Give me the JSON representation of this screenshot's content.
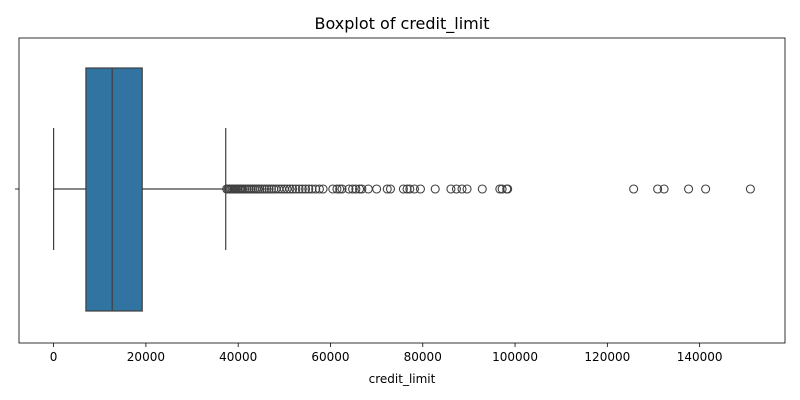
{
  "chart_data": {
    "type": "boxplot",
    "title": "Boxplot of credit_limit",
    "xlabel": "credit_limit",
    "ylabel": "",
    "xlim": [
      -7500,
      158500
    ],
    "grid": false,
    "orientation": "horizontal",
    "box_color": "#3274a1",
    "line_color": "#3f3f3f",
    "x_ticks": [
      0,
      20000,
      40000,
      60000,
      80000,
      100000,
      120000,
      140000
    ],
    "x_tick_labels": [
      "0",
      "20000",
      "40000",
      "60000",
      "80000",
      "100000",
      "120000",
      "140000"
    ],
    "stats": {
      "whisker_low": 0,
      "q1": 7000,
      "median": 12700,
      "q3": 19200,
      "whisker_high": 37300
    },
    "outliers": [
      37500,
      37800,
      38100,
      38400,
      38700,
      39000,
      39300,
      39600,
      39900,
      40200,
      40500,
      40800,
      41100,
      41500,
      41900,
      42300,
      42700,
      43100,
      43500,
      43900,
      44300,
      44700,
      45200,
      45700,
      46200,
      46700,
      47200,
      47700,
      48200,
      48800,
      49400,
      50000,
      50600,
      51200,
      51800,
      52500,
      53200,
      53900,
      54600,
      55300,
      56000,
      56800,
      57600,
      58400,
      60500,
      61400,
      62000,
      62500,
      64000,
      64800,
      65500,
      66300,
      66800,
      68200,
      70000,
      72300,
      73000,
      75800,
      76600,
      77200,
      78200,
      79500,
      82700,
      86100,
      87300,
      88500,
      89600,
      92900,
      96700,
      97200,
      98200,
      98400,
      125700,
      130900,
      132300,
      137600,
      141300,
      151000
    ]
  }
}
